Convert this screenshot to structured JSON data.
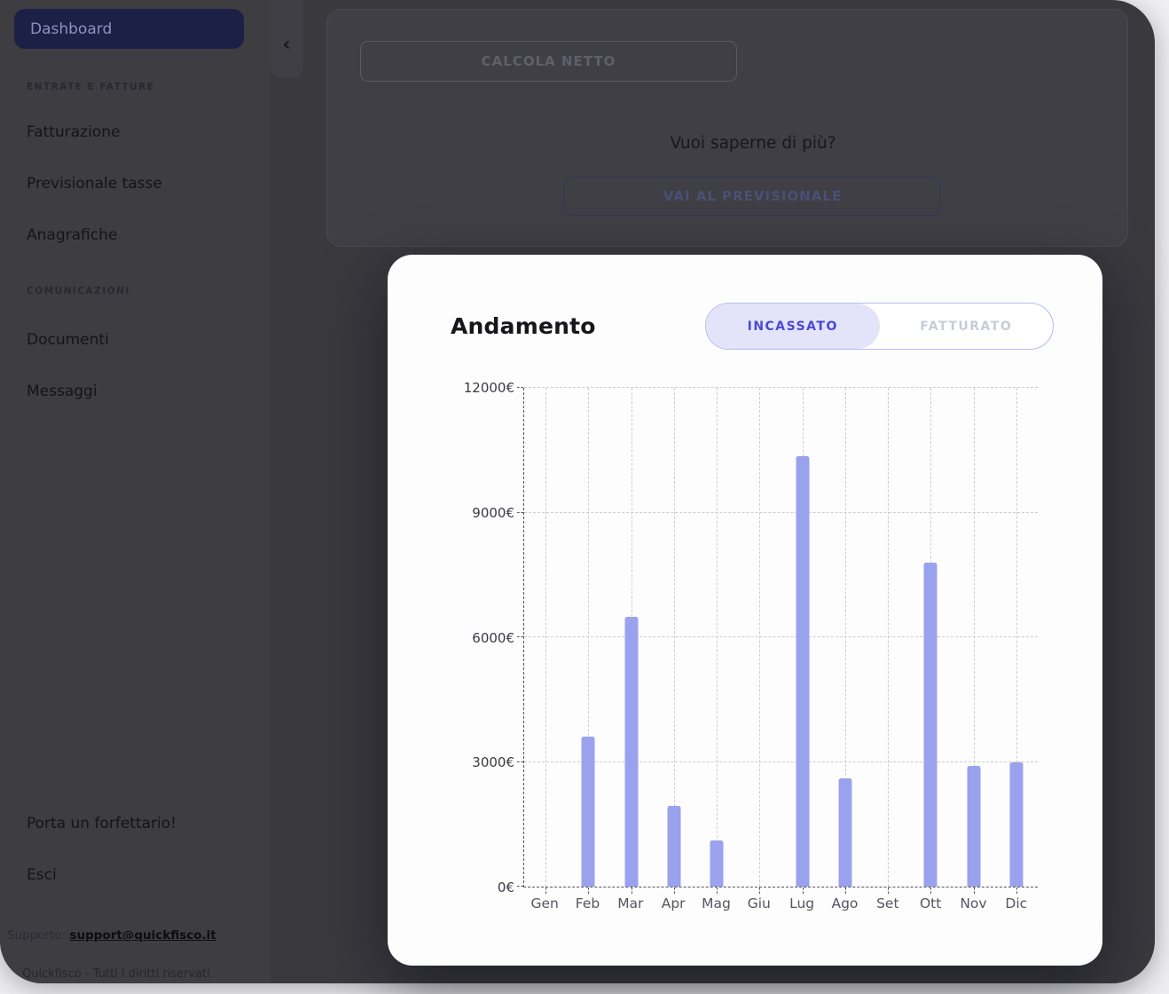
{
  "sidebar": {
    "active_item": "Dashboard",
    "sections": [
      {
        "header": "ENTRATE E FATTURE",
        "items": [
          "Fatturazione",
          "Previsionale tasse",
          "Anagrafiche"
        ]
      },
      {
        "header": "COMUNICAZIONI",
        "items": [
          "Documenti",
          "Messaggi"
        ]
      }
    ],
    "footer_items": [
      "Porta un forfettario!",
      "Esci"
    ],
    "support_label": "Supporto:",
    "support_email": "support@quickfisco.it",
    "copyright": "Quickfisco - Tutti i diritti riservati",
    "collapse_chevron": "‹"
  },
  "content": {
    "calc_button": "CALCOLA NETTO",
    "question": "Vuoi saperne di più?",
    "previsionale_button": "VAI AL PREVISIONALE"
  },
  "modal": {
    "title": "Andamento",
    "tabs": [
      {
        "label": "INCASSATO",
        "active": true
      },
      {
        "label": "FATTURATO",
        "active": false
      }
    ]
  },
  "chart_data": {
    "type": "bar",
    "title": "Andamento",
    "categories": [
      "Gen",
      "Feb",
      "Mar",
      "Apr",
      "Mag",
      "Giu",
      "Lug",
      "Ago",
      "Set",
      "Ott",
      "Nov",
      "Dic"
    ],
    "values": [
      0,
      3600,
      6500,
      1950,
      1100,
      0,
      10350,
      2600,
      0,
      7800,
      2900,
      3000
    ],
    "y_ticks": [
      0,
      3000,
      6000,
      9000,
      12000
    ],
    "y_suffix": "€",
    "ylim": [
      0,
      12000
    ],
    "xlabel": "",
    "ylabel": "",
    "grid": "dashed",
    "legend": "none"
  },
  "colors": {
    "bar": "#9aa2ee",
    "toggle_active_bg": "#e3e4f9",
    "toggle_active_text": "#4b48d6",
    "toggle_border": "#b7bbf0",
    "active_pill_bg": "#1d2046"
  }
}
